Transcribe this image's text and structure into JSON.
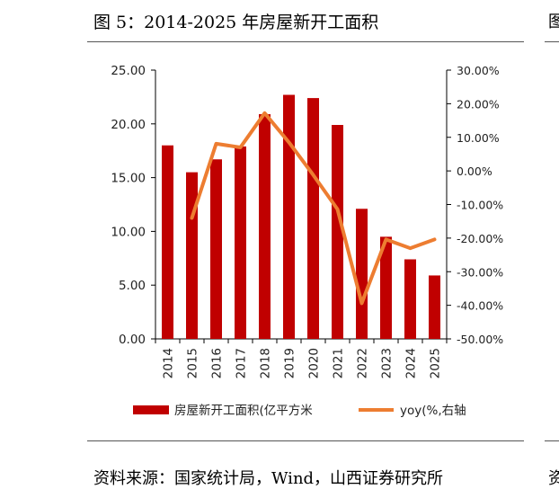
{
  "header": {
    "title": "图 5：2014-2025 年房屋新开工面积"
  },
  "footer": {
    "source": "资料来源：国家统计局，Wind，山西证券研究所"
  },
  "edge": {
    "top_fragment": "图",
    "bottom_fragment": "资"
  },
  "colors": {
    "bar": "#C00000",
    "line": "#ED7D31",
    "axis": "#000000",
    "rule": "#555555"
  },
  "chart_data": {
    "type": "bar",
    "categories": [
      "2014",
      "2015",
      "2016",
      "2017",
      "2018",
      "2019",
      "2020",
      "2021",
      "2022",
      "2023",
      "2024",
      "2025"
    ],
    "series": [
      {
        "name": "房屋新开工面积(亿平方米",
        "type": "bar",
        "axis": "left",
        "values": [
          18.0,
          15.5,
          16.7,
          17.9,
          20.9,
          22.7,
          22.4,
          19.9,
          12.1,
          9.5,
          7.4,
          5.9
        ]
      },
      {
        "name": "yoy(%,右轴",
        "type": "line",
        "axis": "right",
        "values": [
          null,
          -14.0,
          8.1,
          7.0,
          17.2,
          8.5,
          -1.2,
          -11.4,
          -39.4,
          -20.4,
          -23.0,
          -20.4
        ]
      }
    ],
    "left_axis": {
      "min": 0,
      "max": 25,
      "step": 5,
      "tick_labels": [
        "0.00",
        "5.00",
        "10.00",
        "15.00",
        "20.00",
        "25.00"
      ]
    },
    "right_axis": {
      "min": -50,
      "max": 30,
      "step": 10,
      "tick_labels": [
        "-50.00%",
        "-40.00%",
        "-30.00%",
        "-20.00%",
        "-10.00%",
        "0.00%",
        "10.00%",
        "20.00%",
        "30.00%"
      ]
    },
    "grid": false,
    "legend_position": "bottom"
  }
}
